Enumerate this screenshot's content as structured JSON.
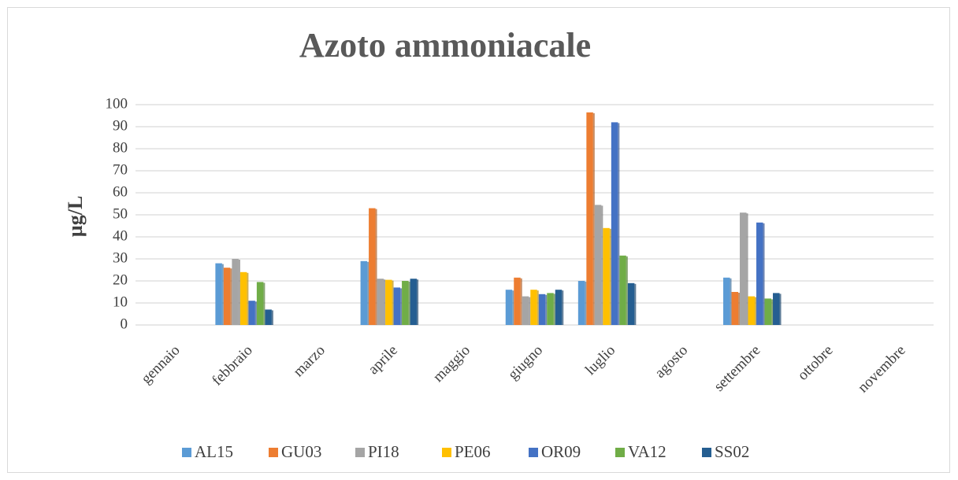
{
  "chart_data": {
    "type": "bar",
    "title": "Azoto ammoniacale",
    "y_label": "µg/L",
    "categories": [
      "gennaio",
      "febbraio",
      "marzo",
      "aprile",
      "maggio",
      "giugno",
      "luglio",
      "agosto",
      "settembre",
      "ottobre",
      "novembre"
    ],
    "series": [
      {
        "name": "AL15",
        "color": "#5b9bd5",
        "values": [
          null,
          28,
          null,
          29,
          null,
          16,
          20,
          null,
          21.5,
          null,
          null
        ]
      },
      {
        "name": "GU03",
        "color": "#ed7d31",
        "values": [
          null,
          26,
          null,
          53,
          null,
          21.5,
          96.5,
          null,
          15,
          null,
          null
        ]
      },
      {
        "name": "PI18",
        "color": "#a5a5a5",
        "values": [
          null,
          30,
          null,
          21,
          null,
          13,
          54.5,
          null,
          51,
          null,
          null
        ]
      },
      {
        "name": "PE06",
        "color": "#ffc000",
        "values": [
          null,
          24,
          null,
          20.5,
          null,
          16,
          44,
          null,
          13,
          null,
          null
        ]
      },
      {
        "name": "OR09",
        "color": "#4472c4",
        "values": [
          null,
          11,
          null,
          17,
          null,
          14,
          92,
          null,
          46.5,
          null,
          null
        ]
      },
      {
        "name": "VA12",
        "color": "#70ad47",
        "values": [
          null,
          19.5,
          null,
          20,
          null,
          14.5,
          31.5,
          null,
          12,
          null,
          null
        ]
      },
      {
        "name": "SS02",
        "color": "#255e91",
        "values": [
          null,
          7,
          null,
          21,
          null,
          16,
          19,
          null,
          14.5,
          null,
          null
        ]
      }
    ],
    "ylim": [
      0,
      100
    ],
    "yticks": [
      0,
      10,
      20,
      30,
      40,
      50,
      60,
      70,
      80,
      90,
      100
    ],
    "grid": true,
    "legend": "bottom"
  }
}
